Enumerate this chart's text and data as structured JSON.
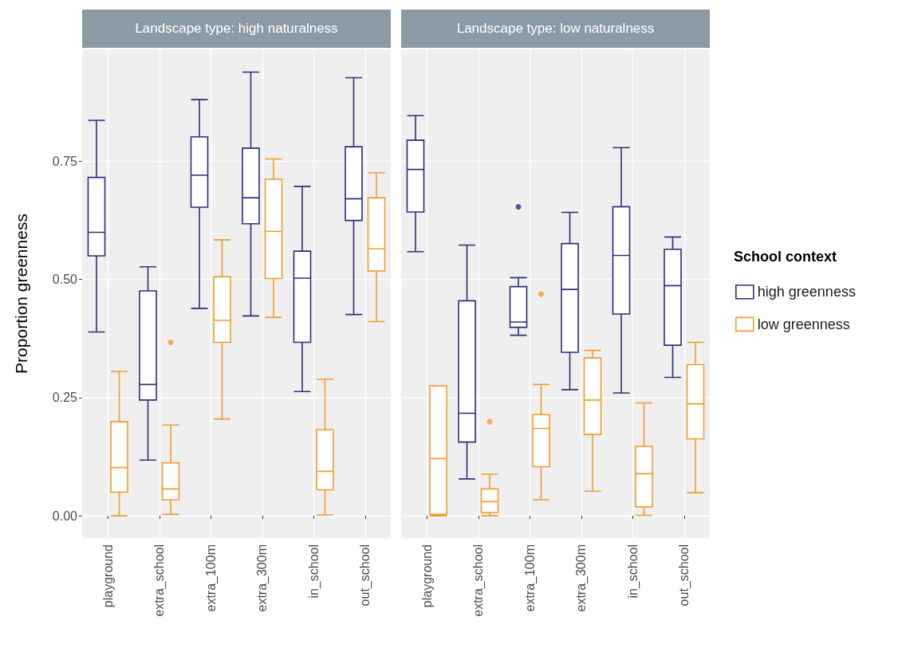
{
  "chart_data": [
    {
      "type": "box",
      "title": "Landscape type: high naturalness",
      "ylabel": "Proportion greenness",
      "categories": [
        "playground",
        "extra_school",
        "extra_100m",
        "extra_300m",
        "in_school",
        "out_school"
      ],
      "series": [
        {
          "color": "#2e2e80",
          "boxes": [
            {
              "low": 0.389,
              "q1": 0.55,
              "median": 0.6,
              "q3": 0.716,
              "high": 0.837
            },
            {
              "low": 0.118,
              "q1": 0.245,
              "median": 0.278,
              "q3": 0.476,
              "high": 0.527
            },
            {
              "low": 0.439,
              "q1": 0.653,
              "median": 0.721,
              "q3": 0.802,
              "high": 0.881
            },
            {
              "low": 0.423,
              "q1": 0.618,
              "median": 0.673,
              "q3": 0.778,
              "high": 0.939
            },
            {
              "low": 0.263,
              "q1": 0.367,
              "median": 0.503,
              "q3": 0.56,
              "high": 0.697
            },
            {
              "low": 0.426,
              "q1": 0.625,
              "median": 0.671,
              "q3": 0.781,
              "high": 0.927
            }
          ]
        },
        {
          "color": "#f39c2b",
          "boxes": [
            {
              "low": 0.0,
              "q1": 0.05,
              "median": 0.102,
              "q3": 0.199,
              "high": 0.305
            },
            {
              "low": 0.003,
              "q1": 0.034,
              "median": 0.057,
              "q3": 0.112,
              "high": 0.192,
              "outliers": [
                0.367
              ]
            },
            {
              "low": 0.205,
              "q1": 0.367,
              "median": 0.414,
              "q3": 0.506,
              "high": 0.584
            },
            {
              "low": 0.42,
              "q1": 0.502,
              "median": 0.602,
              "q3": 0.712,
              "high": 0.755
            },
            {
              "low": 0.002,
              "q1": 0.055,
              "median": 0.094,
              "q3": 0.182,
              "high": 0.289
            },
            {
              "low": 0.411,
              "q1": 0.518,
              "median": 0.565,
              "q3": 0.673,
              "high": 0.726
            }
          ]
        }
      ],
      "ylim": [
        -0.047,
        0.987
      ],
      "yticks": [
        {
          "value": 0,
          "label": "0.00"
        },
        0.25,
        {
          "value": 0.5,
          "label": "0.50"
        },
        0.75
      ],
      "grid": true
    },
    {
      "type": "box",
      "title": "Landscape type: low naturalness",
      "categories": [
        "playground",
        "extra_school",
        "extra_100m",
        "extra_300m",
        "in_school",
        "out_school"
      ],
      "series": [
        {
          "name": "high greenness",
          "color": "#2e2e80",
          "boxes": [
            {
              "low": 0.559,
              "q1": 0.643,
              "median": 0.733,
              "q3": 0.795,
              "high": 0.847
            },
            {
              "low": 0.078,
              "q1": 0.156,
              "median": 0.217,
              "q3": 0.455,
              "high": 0.573
            },
            {
              "low": 0.382,
              "q1": 0.399,
              "median": 0.41,
              "q3": 0.485,
              "high": 0.504,
              "outliers": [
                0.654
              ]
            },
            {
              "low": 0.267,
              "q1": 0.346,
              "median": 0.479,
              "q3": 0.576,
              "high": 0.642
            },
            {
              "low": 0.26,
              "q1": 0.427,
              "median": 0.551,
              "q3": 0.654,
              "high": 0.779
            },
            {
              "low": 0.293,
              "q1": 0.361,
              "median": 0.487,
              "q3": 0.564,
              "high": 0.59
            }
          ]
        },
        {
          "name": "low greenness",
          "color": "#f39c2b",
          "boxes": [
            {
              "low": 0.0,
              "q1": 0.003,
              "median": 0.121,
              "q3": 0.275,
              "high": 0.275
            },
            {
              "low": 0.0,
              "q1": 0.007,
              "median": 0.03,
              "q3": 0.057,
              "high": 0.088,
              "outliers": [
                0.199
              ]
            },
            {
              "low": 0.034,
              "q1": 0.104,
              "median": 0.185,
              "q3": 0.214,
              "high": 0.278,
              "outliers": [
                0.469
              ]
            },
            {
              "low": 0.052,
              "q1": 0.172,
              "median": 0.245,
              "q3": 0.334,
              "high": 0.35
            },
            {
              "low": 0.001,
              "q1": 0.019,
              "median": 0.089,
              "q3": 0.147,
              "high": 0.239
            },
            {
              "low": 0.049,
              "q1": 0.163,
              "median": 0.237,
              "q3": 0.32,
              "high": 0.367
            }
          ]
        }
      ],
      "ylim": [
        -0.047,
        0.987
      ],
      "yticks": [
        0,
        0.25,
        0.5,
        0.75
      ],
      "grid": true,
      "tick_labels": "x",
      "legend": "right",
      "legend_title": "School context"
    }
  ]
}
